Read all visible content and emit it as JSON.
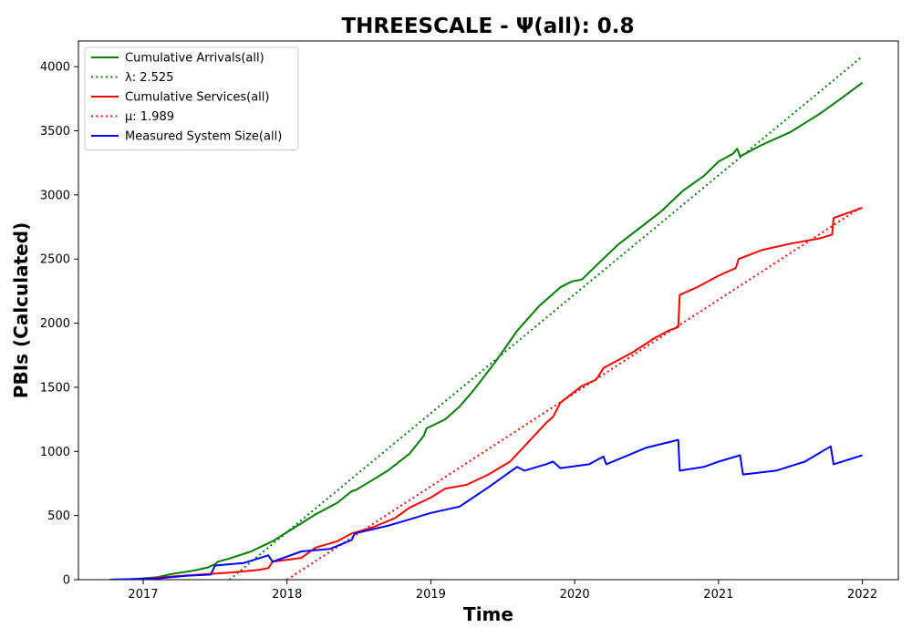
{
  "chart_data": {
    "type": "line",
    "title": "THREESCALE -  Ψ(all): 0.8",
    "xlabel": "Time",
    "ylabel": "PBIs (Calculated)",
    "xlim": [
      2016.55,
      2022.25
    ],
    "ylim": [
      0,
      4200
    ],
    "xticks": [
      2017,
      2018,
      2019,
      2020,
      2021,
      2022
    ],
    "xtick_labels": [
      "2017",
      "2018",
      "2019",
      "2020",
      "2021",
      "2022"
    ],
    "yticks": [
      0,
      500,
      1000,
      1500,
      2000,
      2500,
      3000,
      3500,
      4000
    ],
    "ytick_labels": [
      "0",
      "500",
      "1000",
      "1500",
      "2000",
      "2500",
      "3000",
      "3500",
      "4000"
    ],
    "grid": false,
    "legend_position": "upper-left",
    "legend": [
      "Cumulative Arrivals(all)",
      "λ: 2.525",
      "Cumulative Services(all)",
      "μ: 1.989",
      "Measured System Size(all)"
    ],
    "series": [
      {
        "name": "Cumulative Arrivals(all)",
        "color": "#008000",
        "style": "solid",
        "x": [
          2016.77,
          2016.95,
          2017.1,
          2017.2,
          2017.35,
          2017.45,
          2017.5,
          2017.52,
          2017.6,
          2017.75,
          2017.9,
          2018.0,
          2018.1,
          2018.2,
          2018.35,
          2018.45,
          2018.48,
          2018.6,
          2018.7,
          2018.85,
          2018.95,
          2018.97,
          2019.1,
          2019.2,
          2019.3,
          2019.45,
          2019.6,
          2019.75,
          2019.9,
          2019.98,
          2020.05,
          2020.15,
          2020.3,
          2020.45,
          2020.6,
          2020.75,
          2020.9,
          2021.0,
          2021.1,
          2021.13,
          2021.15,
          2021.3,
          2021.5,
          2021.7,
          2021.85,
          2022.0
        ],
        "values": [
          0,
          5,
          20,
          45,
          70,
          95,
          120,
          140,
          165,
          220,
          300,
          370,
          440,
          510,
          600,
          690,
          700,
          780,
          850,
          980,
          1120,
          1180,
          1250,
          1350,
          1480,
          1700,
          1940,
          2130,
          2280,
          2325,
          2340,
          2450,
          2610,
          2740,
          2870,
          3030,
          3150,
          3260,
          3320,
          3360,
          3300,
          3390,
          3490,
          3630,
          3750,
          3875
        ]
      },
      {
        "name": "λ: 2.525",
        "color": "#008000",
        "style": "dotted",
        "x": [
          2017.6,
          2022.0
        ],
        "values": [
          0,
          4080
        ]
      },
      {
        "name": "Cumulative Services(all)",
        "color": "#ff0000",
        "style": "solid",
        "x": [
          2016.77,
          2017.0,
          2017.2,
          2017.4,
          2017.6,
          2017.8,
          2017.87,
          2017.9,
          2018.1,
          2018.2,
          2018.35,
          2018.45,
          2018.6,
          2018.75,
          2018.85,
          2019.0,
          2019.1,
          2019.25,
          2019.4,
          2019.55,
          2019.65,
          2019.8,
          2019.85,
          2019.9,
          2020.05,
          2020.15,
          2020.2,
          2020.4,
          2020.55,
          2020.65,
          2020.72,
          2020.73,
          2020.85,
          2021.0,
          2021.12,
          2021.14,
          2021.3,
          2021.5,
          2021.7,
          2021.79,
          2021.8,
          2022.0
        ],
        "values": [
          0,
          5,
          25,
          40,
          55,
          75,
          90,
          140,
          170,
          250,
          300,
          360,
          410,
          480,
          560,
          640,
          710,
          740,
          820,
          920,
          1040,
          1220,
          1270,
          1380,
          1510,
          1560,
          1650,
          1770,
          1880,
          1940,
          1970,
          2220,
          2280,
          2370,
          2430,
          2500,
          2570,
          2620,
          2660,
          2690,
          2820,
          2900
        ]
      },
      {
        "name": "μ: 1.989",
        "color": "#ff0000",
        "style": "dotted",
        "x": [
          2018.0,
          2022.0
        ],
        "values": [
          0,
          2910
        ]
      },
      {
        "name": "Measured System Size(all)",
        "color": "#0000ff",
        "style": "solid",
        "x": [
          2016.77,
          2017.1,
          2017.3,
          2017.47,
          2017.5,
          2017.7,
          2017.87,
          2017.9,
          2018.1,
          2018.3,
          2018.45,
          2018.47,
          2018.7,
          2018.85,
          2019.0,
          2019.2,
          2019.4,
          2019.6,
          2019.65,
          2019.8,
          2019.85,
          2019.9,
          2020.1,
          2020.2,
          2020.22,
          2020.5,
          2020.72,
          2020.73,
          2020.9,
          2021.0,
          2021.15,
          2021.17,
          2021.4,
          2021.6,
          2021.78,
          2021.8,
          2022.0
        ],
        "values": [
          0,
          10,
          30,
          40,
          110,
          130,
          190,
          140,
          220,
          240,
          310,
          360,
          420,
          470,
          520,
          570,
          720,
          880,
          850,
          900,
          920,
          870,
          900,
          960,
          900,
          1030,
          1090,
          850,
          880,
          920,
          970,
          820,
          850,
          920,
          1040,
          900,
          970
        ]
      }
    ]
  }
}
